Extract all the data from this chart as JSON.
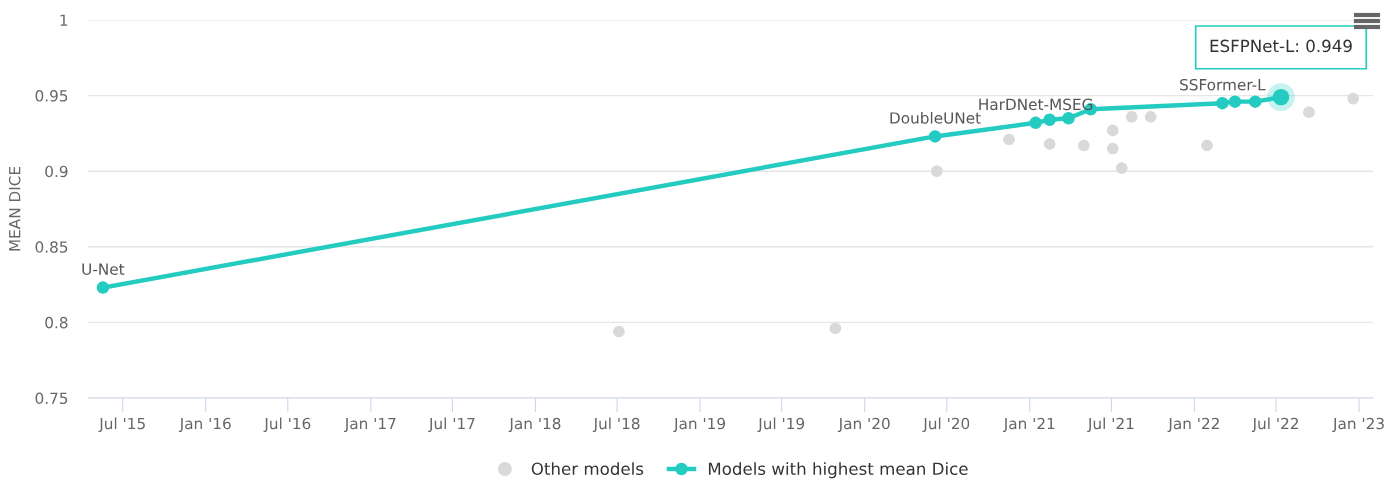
{
  "chart_data": {
    "type": "line",
    "ylabel": "MEAN DICE",
    "xlim": [
      "2015-04-15",
      "2023-02-01"
    ],
    "ylim": [
      0.75,
      1
    ],
    "yticks": [
      0.75,
      0.8,
      0.85,
      0.9,
      0.95,
      1
    ],
    "xticks": [
      {
        "value": "2015-07-01",
        "label": "Jul '15"
      },
      {
        "value": "2016-01-01",
        "label": "Jan '16"
      },
      {
        "value": "2016-07-01",
        "label": "Jul '16"
      },
      {
        "value": "2017-01-01",
        "label": "Jan '17"
      },
      {
        "value": "2017-07-01",
        "label": "Jul '17"
      },
      {
        "value": "2018-01-01",
        "label": "Jan '18"
      },
      {
        "value": "2018-07-01",
        "label": "Jul '18"
      },
      {
        "value": "2019-01-01",
        "label": "Jan '19"
      },
      {
        "value": "2019-07-01",
        "label": "Jul '19"
      },
      {
        "value": "2020-01-01",
        "label": "Jan '20"
      },
      {
        "value": "2020-07-01",
        "label": "Jul '20"
      },
      {
        "value": "2021-01-01",
        "label": "Jan '21"
      },
      {
        "value": "2021-07-01",
        "label": "Jul '21"
      },
      {
        "value": "2022-01-01",
        "label": "Jan '22"
      },
      {
        "value": "2022-07-01",
        "label": "Jul '22"
      },
      {
        "value": "2023-01-01",
        "label": "Jan '23"
      }
    ],
    "grid": "y",
    "legend": "bottom",
    "marker": "circle",
    "series": [
      {
        "name": "Other models",
        "type": "scatter",
        "color": "#d9d9d9",
        "x": [
          "2018-07-05",
          "2019-10-28",
          "2020-06-09",
          "2020-11-16",
          "2021-02-14",
          "2021-05-01",
          "2021-07-04",
          "2021-07-04",
          "2021-07-24",
          "2021-08-15",
          "2021-09-26",
          "2022-01-29",
          "2022-09-12",
          "2022-12-19"
        ],
        "values": [
          0.794,
          0.796,
          0.9,
          0.921,
          0.918,
          0.917,
          0.927,
          0.915,
          0.902,
          0.936,
          0.936,
          0.917,
          0.939,
          0.948
        ]
      },
      {
        "name": "Models with highest mean Dice",
        "color": "#24cbc1",
        "x": [
          "2015-05-18",
          "2020-06-05",
          "2021-01-14",
          "2021-02-14",
          "2021-03-28",
          "2021-05-16",
          "2022-03-04",
          "2022-04-01",
          "2022-05-16",
          "2022-07-12"
        ],
        "values": [
          0.823,
          0.923,
          0.932,
          0.934,
          0.935,
          0.941,
          0.945,
          0.946,
          0.946,
          0.949
        ]
      }
    ],
    "annotations": [
      {
        "text": "U-Net",
        "x": "2015-05-18",
        "y": 0.823
      },
      {
        "text": "DoubleUNet",
        "x": "2020-06-05",
        "y": 0.923
      },
      {
        "text": "HarDNet-MSEG",
        "x": "2021-01-14",
        "y": 0.932
      },
      {
        "text": "SSFormer-L",
        "x": "2022-03-04",
        "y": 0.945
      },
      {
        "text": "ESFPNet-L: 0.949",
        "x": "2022-07-12",
        "y": 0.949
      }
    ]
  }
}
